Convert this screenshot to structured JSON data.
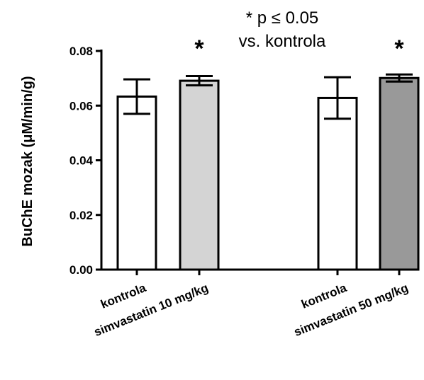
{
  "chart_data": {
    "type": "bar",
    "categories": [
      "kontrola",
      "simvastatin 10 mg/kg",
      "kontrola",
      "simvastatin 50 mg/kg"
    ],
    "values": [
      0.0633,
      0.0691,
      0.0628,
      0.0701
    ],
    "errors": [
      0.0063,
      0.0017,
      0.0076,
      0.0013
    ],
    "bar_colors": [
      "#ffffff",
      "#d4d4d4",
      "#ffffff",
      "#999999"
    ],
    "significant": [
      false,
      true,
      false,
      true
    ],
    "significance_marker": "*",
    "ylabel": "BuChE mozak (μM/min/g)",
    "ylim": [
      0,
      0.08
    ],
    "yticks": [
      "0.00",
      "0.02",
      "0.04",
      "0.06",
      "0.08"
    ],
    "annotation": [
      "* p ≤ 0.05",
      "vs. kontrola"
    ],
    "grid": false
  }
}
